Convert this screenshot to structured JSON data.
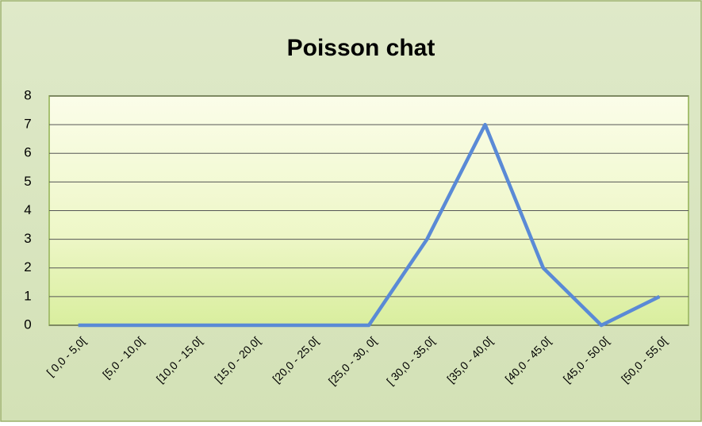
{
  "chart_data": {
    "type": "line",
    "title": "Poisson chat",
    "categories": [
      "[ 0,0 - 5,0[",
      "[5,0 - 10,0[",
      "[10,0 - 15,0[",
      "[15,0 - 20,0[",
      "[20,0 - 25,0[",
      "[25,0 - 30, 0[",
      "[ 30,0 - 35,0[",
      "[35,0 - 40,0[",
      "[40,0 - 45,0[",
      "[45,0 - 50,0[",
      "[50,0 - 55,0["
    ],
    "values": [
      0,
      0,
      0,
      0,
      0,
      0,
      3,
      7,
      2,
      0,
      1
    ],
    "color": "#5a8ad6",
    "ylim": [
      0,
      8
    ],
    "yticks": [
      0,
      1,
      2,
      3,
      4,
      5,
      6,
      7,
      8
    ],
    "grid": true
  }
}
